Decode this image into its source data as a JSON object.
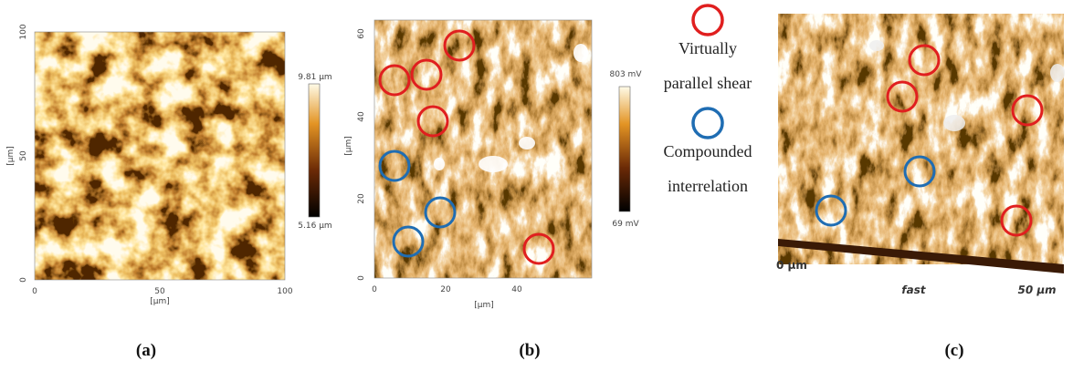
{
  "panels": [
    {
      "caption": "(a)",
      "x_axis": {
        "label": "[µm]",
        "ticks": [
          "0",
          "50",
          "100"
        ]
      },
      "y_axis": {
        "label": "[µm]",
        "ticks": [
          "0",
          "50",
          "100"
        ]
      },
      "colorbar": {
        "max": "9.81 µm",
        "min": "5.16 µm"
      }
    },
    {
      "caption": "(b)",
      "x_axis": {
        "label": "[µm]",
        "ticks": [
          "0",
          "20",
          "40"
        ]
      },
      "y_axis": {
        "label": "[µm]",
        "ticks": [
          "0",
          "20",
          "40",
          "60"
        ]
      },
      "colorbar": {
        "max": "803 mV",
        "min": "69 mV"
      }
    },
    {
      "caption": "(c)",
      "labels": [
        "0 µm",
        "fast",
        "50 µm"
      ]
    }
  ],
  "legend": [
    {
      "label_lines": [
        "Virtually",
        "parallel shear"
      ],
      "color": "#e01f1f"
    },
    {
      "label_lines": [
        "Compounded",
        "interrelation"
      ],
      "color": "#1f6db3"
    }
  ]
}
